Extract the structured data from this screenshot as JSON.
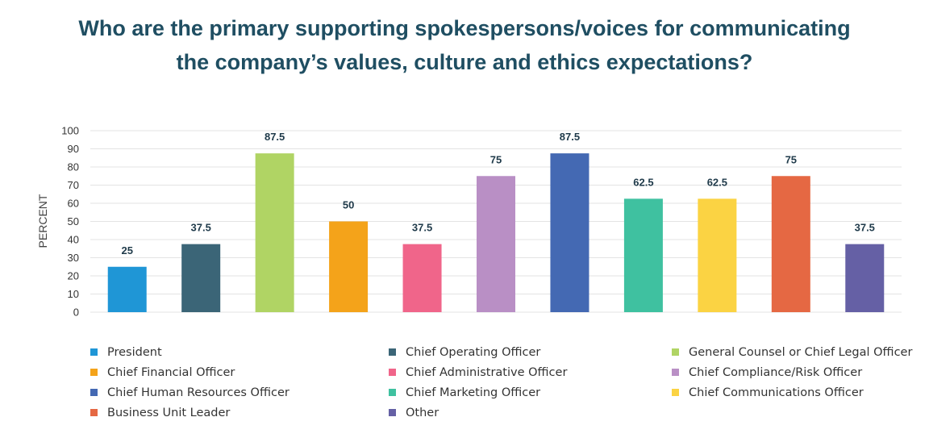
{
  "title": {
    "line1": "Who are the primary supporting spokespersons/voices for communicating",
    "line2": "the company’s values, culture and ethics expectations?"
  },
  "chart_data": {
    "type": "bar",
    "ylabel": "PERCENT",
    "ylim": [
      0,
      100
    ],
    "yticks": [
      0,
      10,
      20,
      30,
      40,
      50,
      60,
      70,
      80,
      90,
      100
    ],
    "grid": true,
    "legend_position": "bottom",
    "categories": [
      "President",
      "Chief Operating Officer",
      "General Counsel or Chief Legal Officer",
      "Chief Financial Officer",
      "Chief Administrative Officer",
      "Chief Compliance/Risk Officer",
      "Chief Human Resources Officer",
      "Chief Marketing Officer",
      "Chief Communications Officer",
      "Business Unit Leader",
      "Other"
    ],
    "values": [
      25,
      37.5,
      87.5,
      50,
      37.5,
      75,
      87.5,
      62.5,
      62.5,
      75,
      37.5
    ],
    "data_labels": [
      "25",
      "37.5",
      "87.5",
      "50",
      "37.5",
      "75",
      "87.5",
      "62.5",
      "62.5",
      "75",
      "37.5"
    ],
    "colors": [
      "#1f96d6",
      "#3b6577",
      "#b0d464",
      "#f4a31a",
      "#f0658a",
      "#b98fc5",
      "#4469b3",
      "#3fc1a0",
      "#fbd343",
      "#e56843",
      "#6560a5"
    ]
  }
}
